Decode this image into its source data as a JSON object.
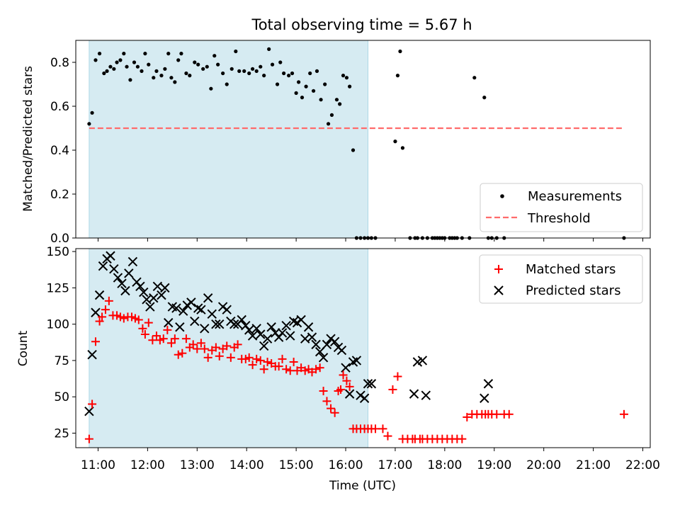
{
  "title": "Total observing time = 5.67 h",
  "colors": {
    "shade": "#add8e6",
    "threshold": "#ff6b6b",
    "matched": "#ff0000",
    "predicted": "#000000",
    "measurements": "#000000"
  },
  "chart_data": [
    {
      "type": "scatter",
      "ylabel": "Matched/Predicted stars",
      "ylim": [
        0,
        0.9
      ],
      "yticks": [
        "0.0",
        "0.2",
        "0.4",
        "0.6",
        "0.8"
      ],
      "ytick_values": [
        0,
        0.2,
        0.4,
        0.6,
        0.8
      ],
      "xlim": [
        10.55,
        22.15
      ],
      "shaded_interval": [
        10.82,
        16.45
      ],
      "threshold": {
        "y": 0.5,
        "x_range": [
          10.82,
          21.62
        ]
      },
      "legend": {
        "position": "lower right",
        "entries": [
          "Measurements",
          "Threshold"
        ]
      },
      "series": [
        {
          "name": "Measurements",
          "marker": "dot",
          "x": [
            10.82,
            10.88,
            10.95,
            11.03,
            11.12,
            11.18,
            11.25,
            11.32,
            11.38,
            11.45,
            11.52,
            11.58,
            11.65,
            11.73,
            11.8,
            11.88,
            11.95,
            12.02,
            12.12,
            12.18,
            12.28,
            12.35,
            12.42,
            12.48,
            12.55,
            12.62,
            12.68,
            12.78,
            12.85,
            12.95,
            13.02,
            13.12,
            13.2,
            13.28,
            13.35,
            13.42,
            13.52,
            13.6,
            13.7,
            13.78,
            13.85,
            13.95,
            14.05,
            14.12,
            14.2,
            14.28,
            14.35,
            14.45,
            14.52,
            14.62,
            14.68,
            14.75,
            14.85,
            14.92,
            15.0,
            15.05,
            15.12,
            15.2,
            15.28,
            15.35,
            15.42,
            15.5,
            15.58,
            15.65,
            15.72,
            15.82,
            15.88,
            15.95,
            16.02,
            16.08,
            16.15,
            16.22,
            16.3,
            16.38,
            16.45,
            16.52,
            16.6,
            17.0,
            17.05,
            17.1,
            17.15,
            17.3,
            17.4,
            17.45,
            17.55,
            17.65,
            17.75,
            17.8,
            17.85,
            17.9,
            17.95,
            18.0,
            18.1,
            18.15,
            18.2,
            18.25,
            18.35,
            18.5,
            18.6,
            18.8,
            18.88,
            18.95,
            19.05,
            19.2,
            21.62
          ],
          "y": [
            0.52,
            0.57,
            0.81,
            0.84,
            0.75,
            0.76,
            0.78,
            0.77,
            0.8,
            0.81,
            0.84,
            0.78,
            0.72,
            0.8,
            0.78,
            0.76,
            0.84,
            0.79,
            0.73,
            0.76,
            0.74,
            0.77,
            0.84,
            0.73,
            0.71,
            0.81,
            0.84,
            0.75,
            0.74,
            0.8,
            0.79,
            0.77,
            0.78,
            0.68,
            0.83,
            0.79,
            0.75,
            0.7,
            0.77,
            0.85,
            0.76,
            0.76,
            0.75,
            0.77,
            0.76,
            0.78,
            0.74,
            0.86,
            0.79,
            0.7,
            0.8,
            0.75,
            0.74,
            0.75,
            0.66,
            0.71,
            0.64,
            0.69,
            0.75,
            0.67,
            0.76,
            0.63,
            0.7,
            0.52,
            0.56,
            0.63,
            0.61,
            0.74,
            0.73,
            0.69,
            0.4,
            0.0,
            0.0,
            0.0,
            0.0,
            0.0,
            0.0,
            0.44,
            0.74,
            0.85,
            0.41,
            0.0,
            0.0,
            0.0,
            0.0,
            0.0,
            0.0,
            0.0,
            0.0,
            0.0,
            0.0,
            0.0,
            0.0,
            0.0,
            0.0,
            0.0,
            0.0,
            0.0,
            0.73,
            0.64,
            0.0,
            0.0,
            0.0,
            0.0,
            0.0
          ]
        }
      ]
    },
    {
      "type": "scatter",
      "ylabel": "Count",
      "xlabel": "Time (UTC)",
      "ylim": [
        15,
        152
      ],
      "yticks": [
        "25",
        "50",
        "75",
        "100",
        "125",
        "150"
      ],
      "ytick_values": [
        25,
        50,
        75,
        100,
        125,
        150
      ],
      "xlim": [
        10.55,
        22.15
      ],
      "xticks": [
        "11:00",
        "12:00",
        "13:00",
        "14:00",
        "15:00",
        "16:00",
        "17:00",
        "18:00",
        "19:00",
        "20:00",
        "21:00",
        "22:00"
      ],
      "xtick_values": [
        11,
        12,
        13,
        14,
        15,
        16,
        17,
        18,
        19,
        20,
        21,
        22
      ],
      "shaded_interval": [
        10.82,
        16.45
      ],
      "legend": {
        "position": "upper right",
        "entries": [
          "Matched stars",
          "Predicted stars"
        ]
      },
      "series": [
        {
          "name": "Matched stars",
          "marker": "plus",
          "x": [
            10.82,
            10.88,
            10.95,
            11.03,
            11.08,
            11.15,
            11.22,
            11.3,
            11.38,
            11.45,
            11.52,
            11.6,
            11.68,
            11.75,
            11.82,
            11.9,
            11.95,
            12.02,
            12.1,
            12.18,
            12.25,
            12.32,
            12.4,
            12.48,
            12.55,
            12.62,
            12.7,
            12.78,
            12.85,
            12.92,
            13.0,
            13.08,
            13.15,
            13.22,
            13.3,
            13.38,
            13.45,
            13.52,
            13.6,
            13.68,
            13.75,
            13.82,
            13.9,
            13.98,
            14.05,
            14.12,
            14.2,
            14.28,
            14.35,
            14.42,
            14.5,
            14.58,
            14.65,
            14.72,
            14.8,
            14.88,
            14.95,
            15.02,
            15.1,
            15.18,
            15.25,
            15.32,
            15.4,
            15.48,
            15.55,
            15.62,
            15.7,
            15.78,
            15.85,
            15.9,
            15.95,
            16.02,
            16.08,
            16.15,
            16.22,
            16.3,
            16.38,
            16.45,
            16.52,
            16.6,
            16.75,
            16.85,
            16.95,
            17.05,
            17.15,
            17.25,
            17.35,
            17.4,
            17.5,
            17.55,
            17.65,
            17.75,
            17.85,
            17.95,
            18.05,
            18.15,
            18.25,
            18.35,
            18.45,
            18.55,
            18.65,
            18.75,
            18.82,
            18.88,
            18.95,
            19.05,
            19.2,
            19.3,
            21.62
          ],
          "y": [
            21,
            45,
            88,
            102,
            105,
            110,
            116,
            106,
            106,
            105,
            104,
            105,
            105,
            104,
            103,
            97,
            93,
            101,
            89,
            92,
            89,
            90,
            96,
            87,
            90,
            79,
            80,
            90,
            84,
            86,
            83,
            87,
            83,
            77,
            82,
            84,
            78,
            83,
            85,
            77,
            84,
            86,
            76,
            76,
            77,
            72,
            76,
            75,
            69,
            74,
            73,
            71,
            71,
            76,
            69,
            68,
            74,
            68,
            70,
            68,
            69,
            67,
            69,
            70,
            54,
            47,
            42,
            39,
            54,
            55,
            65,
            61,
            57,
            28,
            28,
            28,
            28,
            28,
            28,
            28,
            28,
            23,
            55,
            64,
            21,
            21,
            21,
            21,
            21,
            21,
            21,
            21,
            21,
            21,
            21,
            21,
            21,
            21,
            36,
            38,
            38,
            38,
            38,
            38,
            38,
            38,
            38,
            38,
            38
          ]
        },
        {
          "name": "Predicted stars",
          "marker": "cross",
          "x": [
            10.82,
            10.88,
            10.95,
            11.03,
            11.1,
            11.18,
            11.25,
            11.32,
            11.4,
            11.48,
            11.55,
            11.62,
            11.7,
            11.78,
            11.85,
            11.92,
            11.98,
            12.05,
            12.12,
            12.2,
            12.28,
            12.35,
            12.42,
            12.5,
            12.58,
            12.65,
            12.72,
            12.8,
            12.88,
            12.95,
            13.02,
            13.08,
            13.15,
            13.22,
            13.3,
            13.38,
            13.45,
            13.52,
            13.6,
            13.68,
            13.75,
            13.82,
            13.9,
            13.98,
            14.05,
            14.12,
            14.2,
            14.28,
            14.35,
            14.42,
            14.5,
            14.58,
            14.65,
            14.72,
            14.8,
            14.88,
            14.95,
            15.02,
            15.1,
            15.18,
            15.25,
            15.32,
            15.4,
            15.48,
            15.55,
            15.62,
            15.7,
            15.78,
            15.85,
            15.92,
            16.0,
            16.08,
            16.15,
            16.22,
            16.3,
            16.38,
            16.45,
            16.52,
            17.38,
            17.45,
            17.55,
            17.62,
            18.8,
            18.88
          ],
          "y": [
            40,
            79,
            108,
            120,
            140,
            145,
            147,
            138,
            132,
            128,
            123,
            135,
            143,
            129,
            126,
            122,
            117,
            112,
            118,
            126,
            120,
            125,
            101,
            112,
            111,
            98,
            109,
            113,
            115,
            102,
            111,
            110,
            97,
            118,
            107,
            100,
            100,
            112,
            110,
            102,
            100,
            100,
            103,
            99,
            96,
            92,
            97,
            93,
            85,
            90,
            98,
            94,
            91,
            94,
            99,
            92,
            102,
            101,
            103,
            90,
            98,
            91,
            86,
            81,
            77,
            86,
            90,
            88,
            84,
            82,
            70,
            52,
            74,
            75,
            51,
            49,
            59,
            59,
            52,
            74,
            75,
            51,
            49,
            59
          ]
        }
      ]
    }
  ]
}
